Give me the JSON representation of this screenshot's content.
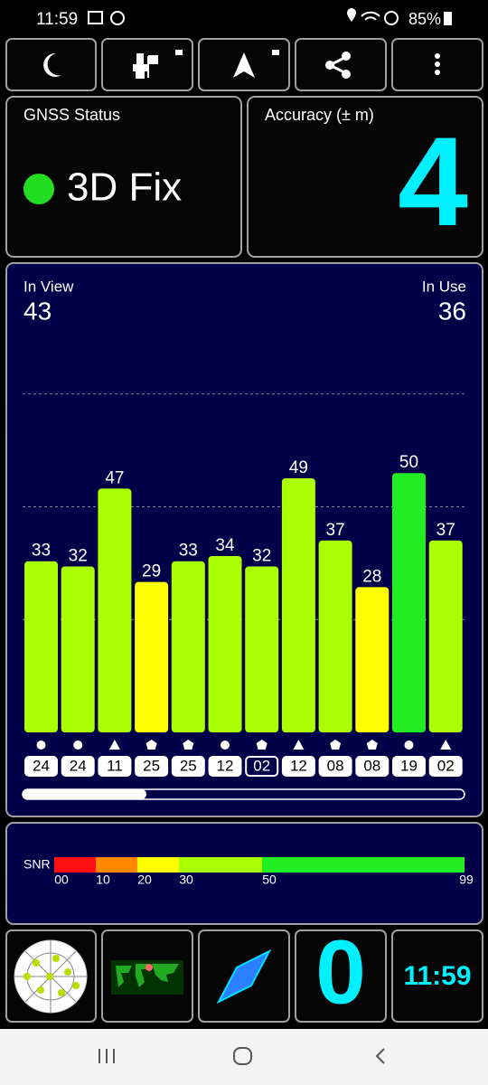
{
  "status_bar": {
    "time": "11:59",
    "battery": "85%"
  },
  "gnss_status": {
    "title": "GNSS Status",
    "fix": "3D Fix"
  },
  "accuracy": {
    "title": "Accuracy (± m)",
    "value": 4
  },
  "in_view": {
    "label": "In View",
    "value": 43
  },
  "in_use": {
    "label": "In Use",
    "value": 36
  },
  "chart_data": {
    "type": "bar",
    "categories": [
      "24",
      "24",
      "11",
      "25",
      "25",
      "12",
      "02",
      "12",
      "08",
      "08",
      "19",
      "02"
    ],
    "values": [
      33,
      32,
      47,
      29,
      33,
      34,
      32,
      49,
      37,
      28,
      50,
      37
    ],
    "colors": [
      "#aaff00",
      "#aaff00",
      "#aaff00",
      "#ffff00",
      "#aaff00",
      "#aaff00",
      "#aaff00",
      "#aaff00",
      "#aaff00",
      "#ffff00",
      "#22ee22",
      "#aaff00"
    ],
    "ylim": [
      0,
      87
    ],
    "grid": true
  },
  "snr_scale": {
    "label": "SNR",
    "ticks": [
      "00",
      "10",
      "20",
      "30",
      "50",
      "99"
    ]
  },
  "bottom": {
    "count": 0,
    "clock": "11:59"
  }
}
